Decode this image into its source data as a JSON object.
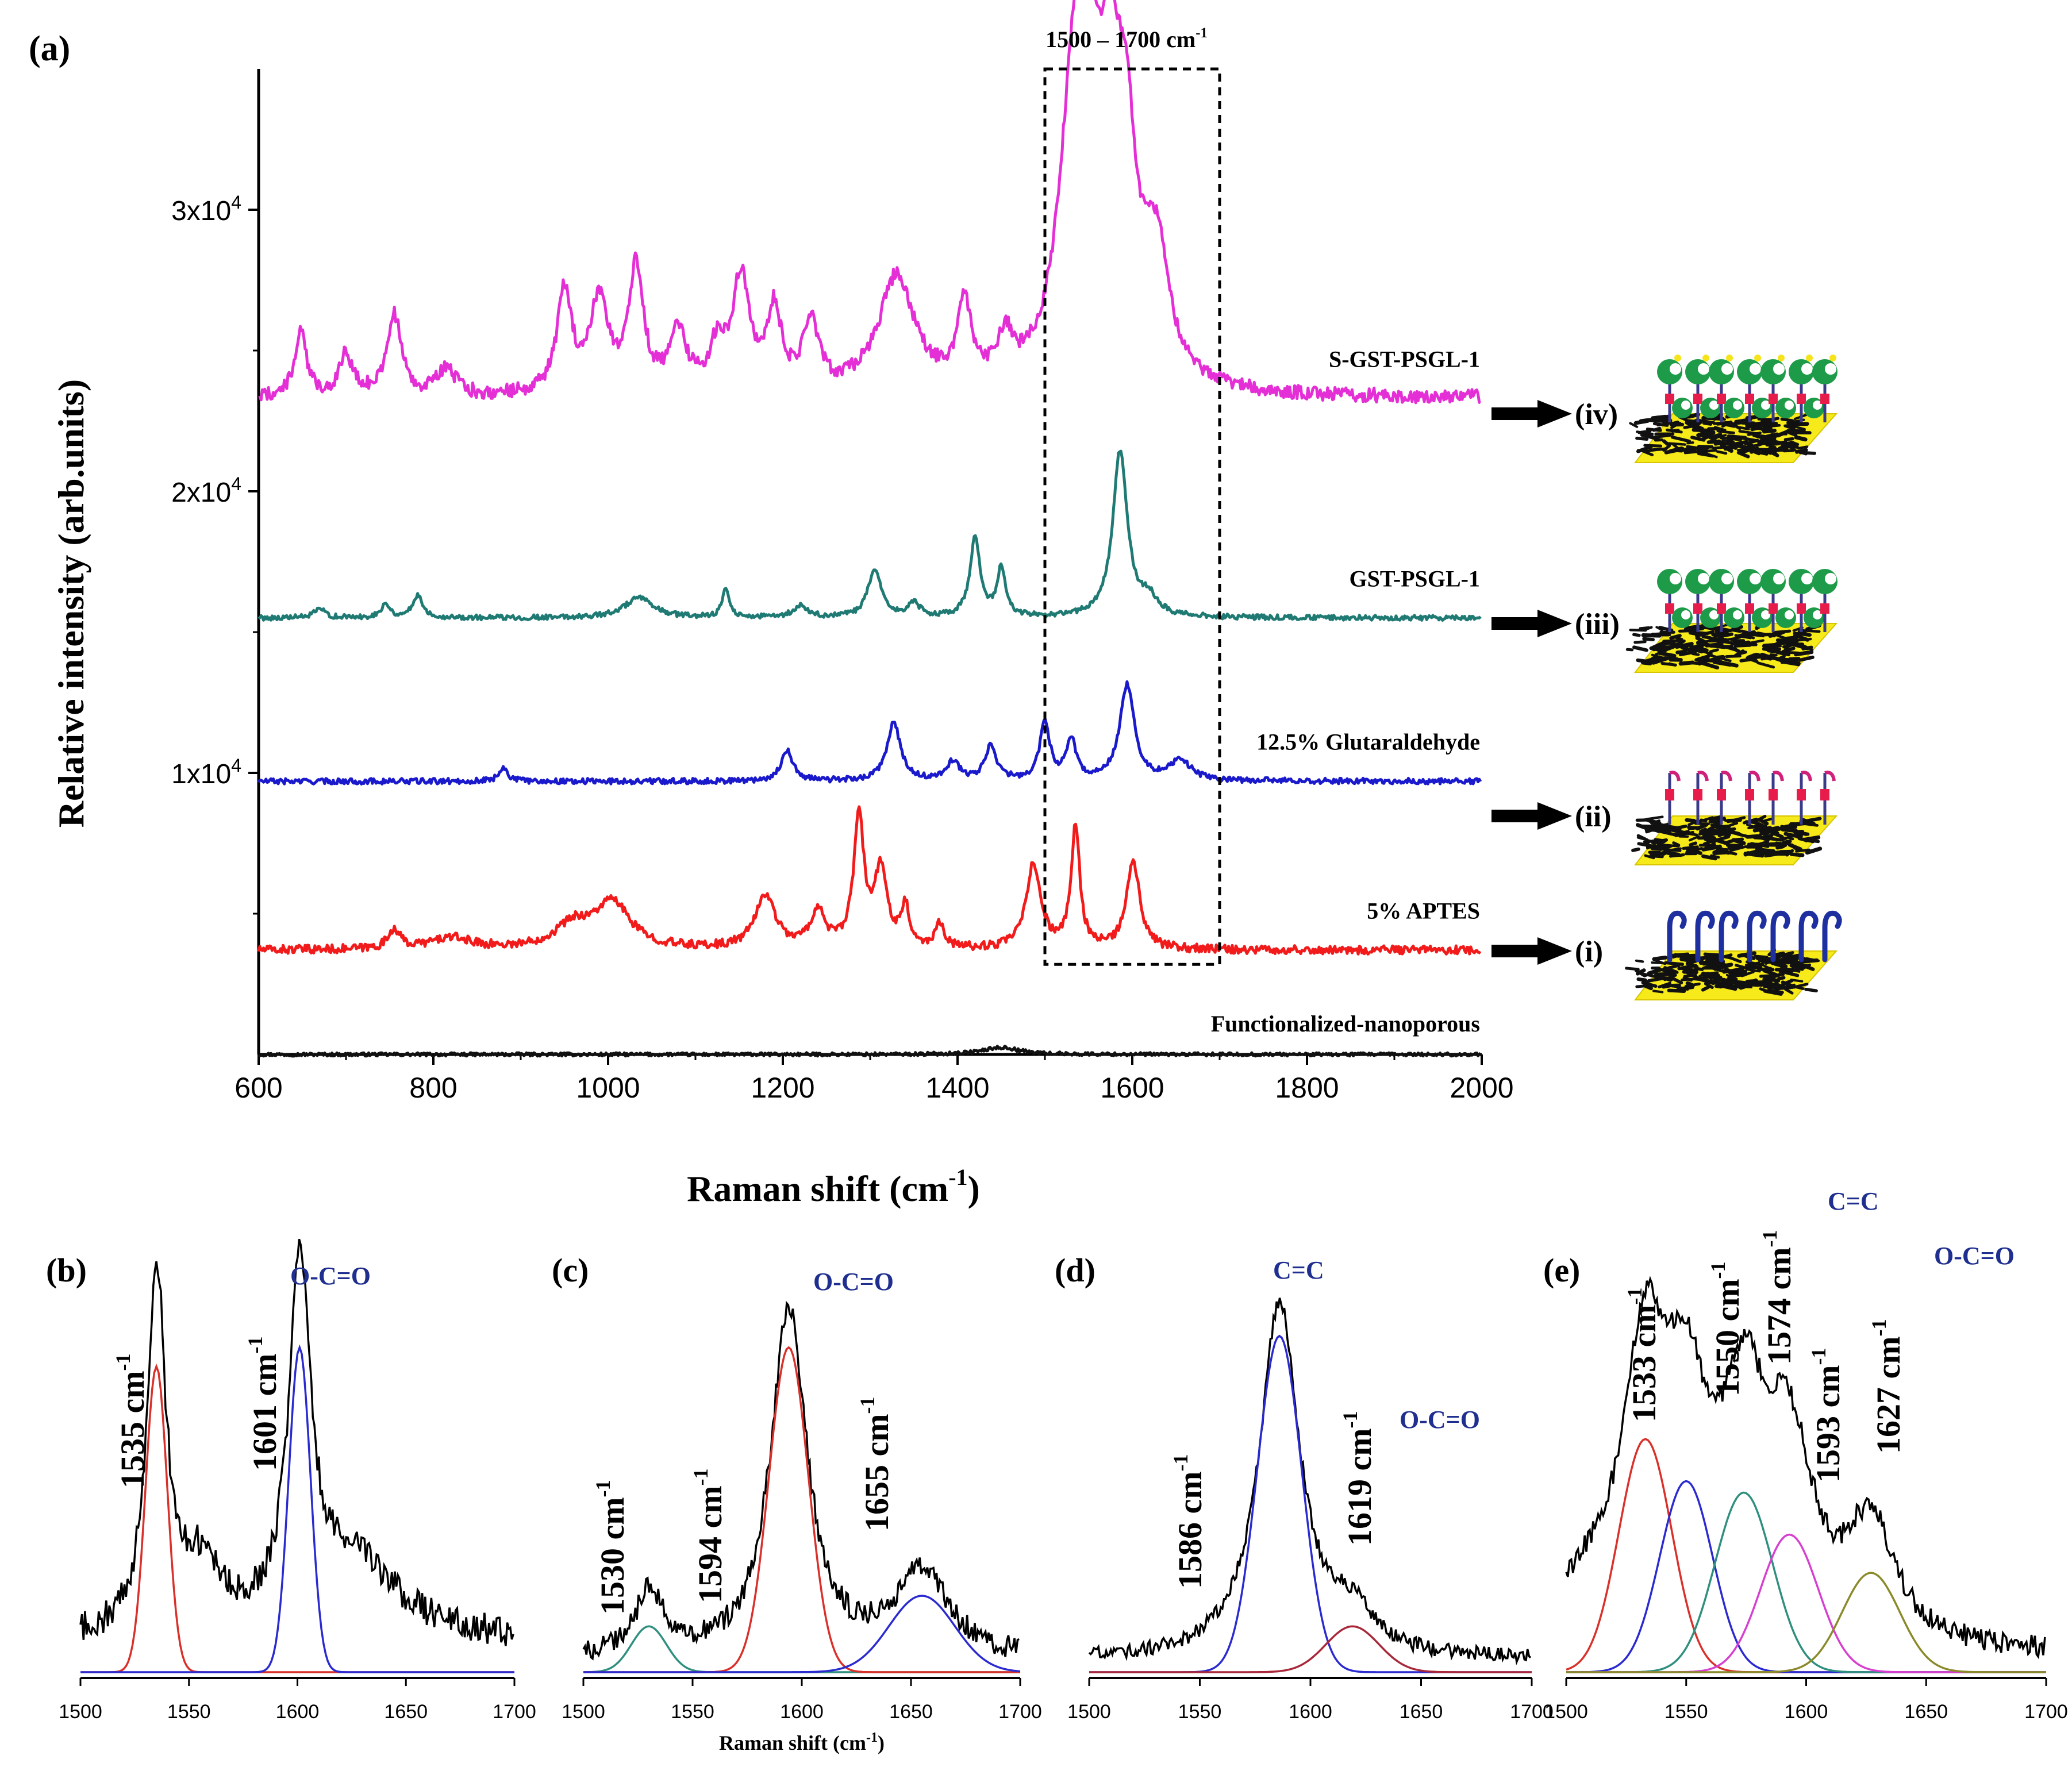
{
  "main_panel": {
    "panel_label": "(a)",
    "type": "line",
    "title": "",
    "xlabel": "Raman shift (cm",
    "xlabel_sup": "-1",
    "xlabel_close": ")",
    "ylabel": "Relative intensity (arb.units)",
    "xlim": [
      600,
      2000
    ],
    "ylim": [
      0,
      35000
    ],
    "xticks": [
      600,
      800,
      1000,
      1200,
      1400,
      1600,
      1800,
      2000
    ],
    "yticks": [
      {
        "value": 10000,
        "mantissa": "1x10",
        "exp": "4"
      },
      {
        "value": 20000,
        "mantissa": "2x10",
        "exp": "4"
      },
      {
        "value": 30000,
        "mantissa": "3x10",
        "exp": "4"
      }
    ],
    "highlight": {
      "range": [
        1500,
        1700
      ],
      "yrange": [
        3200,
        35000
      ],
      "label": "1500 – 1700 cm",
      "label_sup": "-1"
    },
    "series": [
      {
        "name": "Functionalized-nanoporous",
        "color": "#111111",
        "baseline": 0,
        "peaks": [
          [
            1450,
            250,
            25
          ]
        ],
        "noise": 120
      },
      {
        "name": "5% APTES",
        "color": "#f21b1b",
        "baseline": 3700,
        "marker": "(i)",
        "peaks": [
          [
            755,
            700,
            8
          ],
          [
            820,
            400,
            30
          ],
          [
            960,
            800,
            25
          ],
          [
            1005,
            1600,
            25
          ],
          [
            1180,
            1900,
            14
          ],
          [
            1240,
            1300,
            10
          ],
          [
            1287,
            4600,
            7
          ],
          [
            1312,
            2700,
            9
          ],
          [
            1340,
            1400,
            6
          ],
          [
            1380,
            900,
            6
          ],
          [
            1487,
            3000,
            10
          ],
          [
            1535,
            4300,
            6
          ],
          [
            1601,
            3100,
            9
          ]
        ],
        "noise": 300
      },
      {
        "name": "12.5% Glutaraldehyde",
        "color": "#1a1acc",
        "baseline": 9700,
        "marker": "(ii)",
        "peaks": [
          [
            880,
            500,
            6
          ],
          [
            1205,
            1100,
            8
          ],
          [
            1327,
            2100,
            9
          ],
          [
            1395,
            700,
            8
          ],
          [
            1438,
            1200,
            8
          ],
          [
            1500,
            2000,
            7
          ],
          [
            1530,
            1400,
            7
          ],
          [
            1594,
            3400,
            10
          ],
          [
            1655,
            700,
            15
          ]
        ],
        "noise": 200
      },
      {
        "name": "GST-PSGL-1",
        "color": "#207a74",
        "baseline": 15500,
        "marker": "(iii)",
        "peaks": [
          [
            670,
            300,
            8
          ],
          [
            745,
            500,
            6
          ],
          [
            782,
            800,
            7
          ],
          [
            1035,
            700,
            20
          ],
          [
            1135,
            1000,
            5
          ],
          [
            1220,
            400,
            10
          ],
          [
            1305,
            1700,
            9
          ],
          [
            1350,
            500,
            8
          ],
          [
            1420,
            2800,
            7
          ],
          [
            1450,
            1700,
            6
          ],
          [
            1586,
            5900,
            10
          ],
          [
            1619,
            600,
            12
          ]
        ],
        "noise": 180
      },
      {
        "name": "S-GST-PSGL-1",
        "color": "#e52fd6",
        "baseline": 23300,
        "marker": "(iv)",
        "peaks": [
          [
            648,
            2300,
            8
          ],
          [
            700,
            1500,
            9
          ],
          [
            755,
            2900,
            10
          ],
          [
            815,
            1000,
            12
          ],
          [
            950,
            3600,
            10
          ],
          [
            990,
            3300,
            13
          ],
          [
            1032,
            4400,
            10
          ],
          [
            1080,
            2100,
            12
          ],
          [
            1125,
            1500,
            10
          ],
          [
            1152,
            4000,
            12
          ],
          [
            1190,
            2800,
            10
          ],
          [
            1232,
            2400,
            11
          ],
          [
            1330,
            4100,
            25
          ],
          [
            1408,
            2800,
            10
          ],
          [
            1455,
            1500,
            10
          ],
          [
            1533,
            9500,
            20
          ],
          [
            1550,
            7000,
            14
          ],
          [
            1574,
            8500,
            15
          ],
          [
            1593,
            6500,
            14
          ],
          [
            1627,
            4500,
            18
          ]
        ],
        "noise": 500
      }
    ]
  },
  "schematics": {
    "arrow_icon": "right-arrow-icon",
    "items": [
      {
        "marker": "(iv)",
        "icon": "protein-sugar-substrate-icon"
      },
      {
        "marker": "(iii)",
        "icon": "protein-substrate-icon"
      },
      {
        "marker": "(ii)",
        "icon": "linker-substrate-icon"
      },
      {
        "marker": "(i)",
        "icon": "aptes-substrate-icon"
      }
    ]
  },
  "chart_data": [
    {
      "id": "b",
      "type": "line",
      "panel_label": "(b)",
      "xlim": [
        1500,
        1700
      ],
      "xticks": [
        1500,
        1550,
        1600,
        1650,
        1700
      ],
      "group_labels": [
        {
          "text": "O-C=O",
          "color": "#1f2f8f"
        }
      ],
      "peak_labels": [
        {
          "text": "1535 cm",
          "sup": "-1",
          "x": 1535
        },
        {
          "text": "1601 cm",
          "sup": "-1",
          "x": 1601
        }
      ],
      "fits": [
        {
          "center": 1535,
          "height": 0.8,
          "width": 5,
          "color": "#d9302a"
        },
        {
          "center": 1601,
          "height": 0.85,
          "width": 5,
          "color": "#2a2ad0"
        }
      ],
      "raw": {
        "baseline": 0.08,
        "peaks": [
          [
            1535,
            0.95,
            5
          ],
          [
            1601,
            0.92,
            6
          ],
          [
            1555,
            0.17,
            12
          ],
          [
            1625,
            0.2,
            25
          ]
        ],
        "noise": 0.04
      }
    },
    {
      "id": "c",
      "type": "line",
      "panel_label": "(c)",
      "xlim": [
        1500,
        1700
      ],
      "xticks": [
        1500,
        1550,
        1600,
        1650,
        1700
      ],
      "xlabel": "Raman shift (cm",
      "xlabel_sup": "-1",
      "xlabel_close": ")",
      "group_labels": [
        {
          "text": "O-C=O",
          "color": "#1f2f8f"
        }
      ],
      "peak_labels": [
        {
          "text": "1530 cm",
          "sup": "-1",
          "x": 1530
        },
        {
          "text": "1594 cm",
          "sup": "-1",
          "x": 1594
        },
        {
          "text": "1655 cm",
          "sup": "-1",
          "x": 1655
        }
      ],
      "fits": [
        {
          "center": 1530,
          "height": 0.12,
          "width": 8,
          "color": "#2f8f7f"
        },
        {
          "center": 1594,
          "height": 0.85,
          "width": 9,
          "color": "#d9302a"
        },
        {
          "center": 1655,
          "height": 0.2,
          "width": 15,
          "color": "#2a2ad0"
        }
      ],
      "raw": {
        "baseline": 0.03,
        "peaks": [
          [
            1530,
            0.17,
            8
          ],
          [
            1594,
            0.92,
            10
          ],
          [
            1655,
            0.22,
            15
          ]
        ],
        "noise": 0.03
      }
    },
    {
      "id": "d",
      "type": "line",
      "panel_label": "(d)",
      "xlim": [
        1500,
        1700
      ],
      "xticks": [
        1500,
        1550,
        1600,
        1650,
        1700
      ],
      "group_labels": [
        {
          "text": "C=C",
          "color": "#1f2f8f"
        },
        {
          "text": "O-C=O",
          "color": "#1f2f8f"
        }
      ],
      "peak_labels": [
        {
          "text": "1586 cm",
          "sup": "-1",
          "x": 1586
        },
        {
          "text": "1619 cm",
          "sup": "-1",
          "x": 1619
        }
      ],
      "fits": [
        {
          "center": 1586,
          "height": 0.88,
          "width": 10,
          "color": "#2a2ad0"
        },
        {
          "center": 1619,
          "height": 0.12,
          "width": 12,
          "color": "#a8283a"
        }
      ],
      "raw": {
        "baseline": 0.03,
        "peaks": [
          [
            1586,
            0.93,
            11
          ],
          [
            1619,
            0.1,
            12
          ]
        ],
        "noise": 0.02
      }
    },
    {
      "id": "e",
      "type": "line",
      "panel_label": "(e)",
      "xlim": [
        1500,
        1700
      ],
      "xticks": [
        1500,
        1550,
        1600,
        1650,
        1700
      ],
      "group_labels": [
        {
          "text": "C=C",
          "color": "#1f2f8f"
        },
        {
          "text": "O-C=O",
          "color": "#1f2f8f"
        }
      ],
      "peak_labels": [
        {
          "text": "1533 cm",
          "sup": "-1",
          "x": 1533
        },
        {
          "text": "1550 cm",
          "sup": "-1",
          "x": 1550
        },
        {
          "text": "1574 cm",
          "sup": "-1",
          "x": 1574
        },
        {
          "text": "1593 cm",
          "sup": "-1",
          "x": 1593
        },
        {
          "text": "1627 cm",
          "sup": "-1",
          "x": 1627
        }
      ],
      "fits": [
        {
          "center": 1533,
          "height": 0.61,
          "width": 11,
          "color": "#d9302a"
        },
        {
          "center": 1550,
          "height": 0.5,
          "width": 11,
          "color": "#2a2ad0"
        },
        {
          "center": 1574,
          "height": 0.47,
          "width": 12,
          "color": "#2f8f7f"
        },
        {
          "center": 1593,
          "height": 0.36,
          "width": 12,
          "color": "#d63fd0"
        },
        {
          "center": 1627,
          "height": 0.26,
          "width": 12,
          "color": "#8a8a2a"
        }
      ],
      "raw": {
        "baseline": 0.04,
        "peaks": [
          [
            1533,
            0.7,
            11
          ],
          [
            1550,
            0.5,
            11
          ],
          [
            1574,
            0.55,
            12
          ],
          [
            1593,
            0.45,
            12
          ],
          [
            1627,
            0.3,
            12
          ],
          [
            1510,
            0.12,
            20
          ]
        ],
        "noise": 0.03
      }
    }
  ]
}
